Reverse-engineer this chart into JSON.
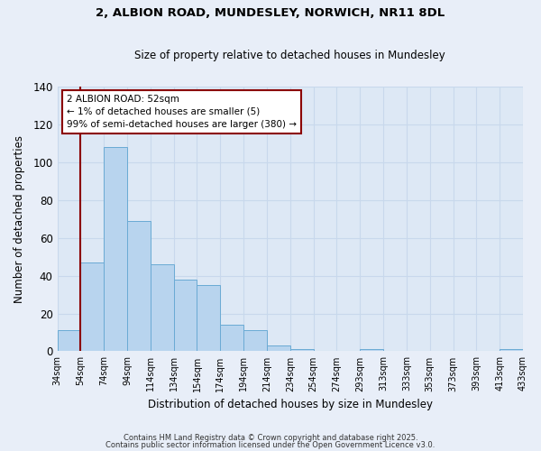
{
  "title": "2, ALBION ROAD, MUNDESLEY, NORWICH, NR11 8DL",
  "subtitle": "Size of property relative to detached houses in Mundesley",
  "xlabel": "Distribution of detached houses by size in Mundesley",
  "ylabel": "Number of detached properties",
  "bar_values": [
    11,
    47,
    108,
    69,
    46,
    38,
    35,
    14,
    11,
    3,
    1,
    0,
    0,
    1,
    0,
    0,
    0,
    0,
    0,
    1
  ],
  "bin_labels": [
    "34sqm",
    "54sqm",
    "74sqm",
    "94sqm",
    "114sqm",
    "134sqm",
    "154sqm",
    "174sqm",
    "194sqm",
    "214sqm",
    "234sqm",
    "254sqm",
    "274sqm",
    "293sqm",
    "313sqm",
    "333sqm",
    "353sqm",
    "373sqm",
    "393sqm",
    "413sqm",
    "433sqm"
  ],
  "bar_color": "#b8d4ee",
  "bar_edge_color": "#6aaad4",
  "ylim": [
    0,
    140
  ],
  "yticks": [
    0,
    20,
    40,
    60,
    80,
    100,
    120,
    140
  ],
  "red_line_x": 1,
  "annotation_title": "2 ALBION ROAD: 52sqm",
  "annotation_line1": "← 1% of detached houses are smaller (5)",
  "annotation_line2": "99% of semi-detached houses are larger (380) →",
  "footer1": "Contains HM Land Registry data © Crown copyright and database right 2025.",
  "footer2": "Contains public sector information licensed under the Open Government Licence v3.0.",
  "bg_color": "#e8eef8",
  "plot_bg_color": "#dde8f5",
  "grid_color": "#c8d8ec"
}
